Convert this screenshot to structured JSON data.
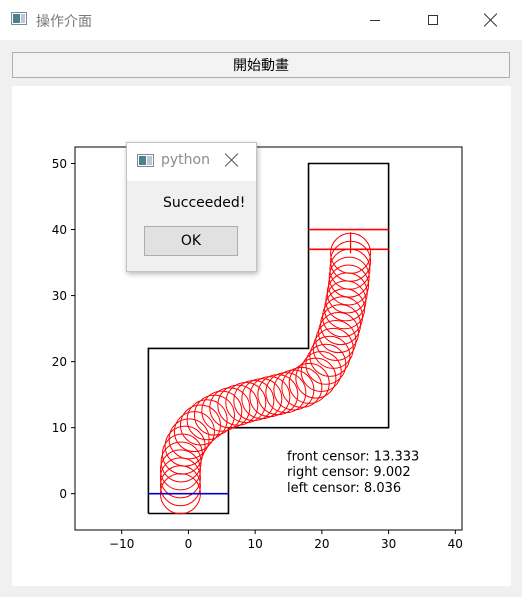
{
  "window": {
    "title": "操作介面",
    "icon": "app-window-icon",
    "controls": [
      "minimize-icon",
      "maximize-icon",
      "close-icon"
    ]
  },
  "toolbar": {
    "start_label": "開始動畫"
  },
  "dialog": {
    "title": "python",
    "message": "Succeeded!",
    "ok_label": "OK"
  },
  "chart_data": {
    "type": "line",
    "xlim": [
      -17,
      41
    ],
    "ylim": [
      -5.5,
      52.5
    ],
    "xticks": [
      -10,
      0,
      10,
      20,
      30,
      40
    ],
    "yticks": [
      0,
      10,
      20,
      30,
      40,
      50
    ],
    "track": [
      [
        -6,
        -3
      ],
      [
        -6,
        22
      ],
      [
        18,
        22
      ],
      [
        18,
        50
      ],
      [
        30,
        50
      ],
      [
        30,
        10
      ],
      [
        6,
        10
      ],
      [
        6,
        -3
      ],
      [
        -6,
        -3
      ]
    ],
    "start_line": {
      "x": [
        -6,
        6
      ],
      "y": [
        0,
        0
      ],
      "color": "#0000cc"
    },
    "finish_lines": [
      {
        "x": [
          18,
          30
        ],
        "y": [
          40,
          40
        ],
        "color": "#ff0000"
      },
      {
        "x": [
          18,
          30
        ],
        "y": [
          37,
          37
        ],
        "color": "#ff0000"
      }
    ],
    "car_radius": 3,
    "car_color": "#ff0000",
    "car_path": [
      [
        -1.2,
        0
      ],
      [
        -1.2,
        1.2
      ],
      [
        -1.2,
        2.4
      ],
      [
        -1.2,
        3.6
      ],
      [
        -1.1,
        4.8
      ],
      [
        -0.9,
        6
      ],
      [
        -0.5,
        7.2
      ],
      [
        0.1,
        8.3
      ],
      [
        0.9,
        9.4
      ],
      [
        1.8,
        10.4
      ],
      [
        2.8,
        11.2
      ],
      [
        3.9,
        11.9
      ],
      [
        5,
        12.5
      ],
      [
        6.2,
        13
      ],
      [
        7.4,
        13.4
      ],
      [
        8.6,
        13.8
      ],
      [
        9.8,
        14.1
      ],
      [
        11,
        14.4
      ],
      [
        12.2,
        14.7
      ],
      [
        13.4,
        15
      ],
      [
        14.6,
        15.3
      ],
      [
        15.8,
        15.7
      ],
      [
        17,
        16.1
      ],
      [
        18.1,
        16.7
      ],
      [
        19.1,
        17.5
      ],
      [
        19.9,
        18.5
      ],
      [
        20.6,
        19.6
      ],
      [
        21.2,
        20.8
      ],
      [
        21.7,
        22
      ],
      [
        22.1,
        23.2
      ],
      [
        22.5,
        24.4
      ],
      [
        22.8,
        25.6
      ],
      [
        23.1,
        26.8
      ],
      [
        23.4,
        28
      ],
      [
        23.6,
        29.2
      ],
      [
        23.8,
        30.4
      ],
      [
        24,
        31.6
      ],
      [
        24.1,
        32.8
      ],
      [
        24.2,
        34
      ],
      [
        24.3,
        35.2
      ],
      [
        24.3,
        36.4
      ]
    ],
    "sensor_line": {
      "x": [
        24.3,
        24.3
      ],
      "y": [
        36.4,
        39.6
      ],
      "color": "#ff0000"
    }
  },
  "sensors": {
    "front": "front censor: 13.333",
    "right": "right censor: 9.002",
    "left": "left censor: 8.036"
  }
}
